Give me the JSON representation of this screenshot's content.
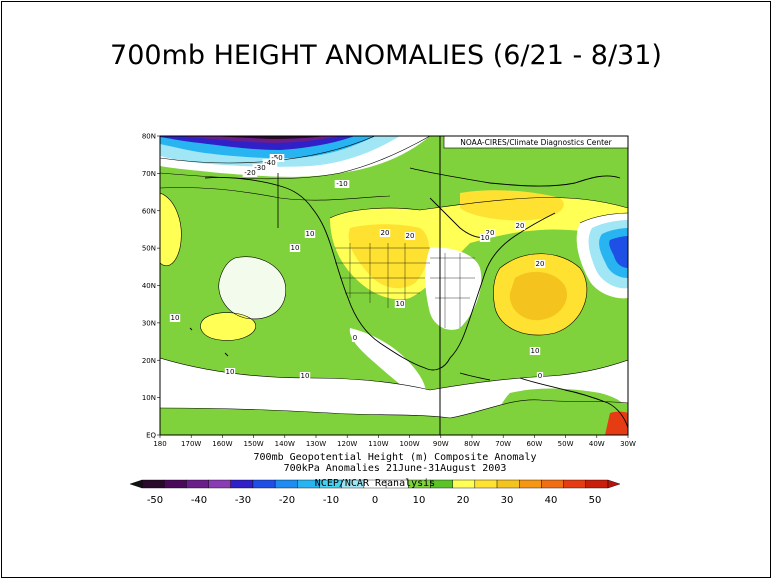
{
  "slide": {
    "title": "700mb HEIGHT ANOMALIES (6/21 - 8/31)"
  },
  "map": {
    "credit": "NOAA-CIRES/Climate Diagnostics Center",
    "lat_labels": [
      "80N",
      "70N",
      "60N",
      "50N",
      "40N",
      "30N",
      "20N",
      "10N",
      "EQ"
    ],
    "lon_labels": [
      "180",
      "170W",
      "160W",
      "150W",
      "140W",
      "130W",
      "120W",
      "110W",
      "100W",
      "90W",
      "80W",
      "70W",
      "60W",
      "50W",
      "40W",
      "30W"
    ],
    "contour_labels": [
      "-50",
      "-40",
      "-30",
      "-20",
      "-10",
      "10",
      "10",
      "10",
      "10",
      "10",
      "20",
      "20",
      "20",
      "20",
      "20",
      "10",
      "0",
      "10",
      "10",
      "0"
    ],
    "caption_line1": "700mb Geopotential Height (m) Composite Anomaly",
    "caption_line2": "700kPa Anomalies 21June-31August 2003",
    "reanalysis_label": "NCEP/NCAR Reanalysis"
  },
  "colorbar": {
    "labels": [
      "-50",
      "-40",
      "-30",
      "-20",
      "-10",
      "0",
      "10",
      "20",
      "30",
      "40",
      "50"
    ],
    "colors": [
      "#2a0a2a",
      "#4a0a5a",
      "#6a1e8c",
      "#8a3cb4",
      "#3020c8",
      "#1e50e6",
      "#1e8cf0",
      "#28b4f0",
      "#46d2f0",
      "#a0e6f5",
      "#ffffff",
      "#ffffff",
      "#7fd23c",
      "#5ac328",
      "#ffff55",
      "#ffe132",
      "#f5c31e",
      "#f59614",
      "#f06e14",
      "#e63c14",
      "#c81e0a"
    ]
  }
}
